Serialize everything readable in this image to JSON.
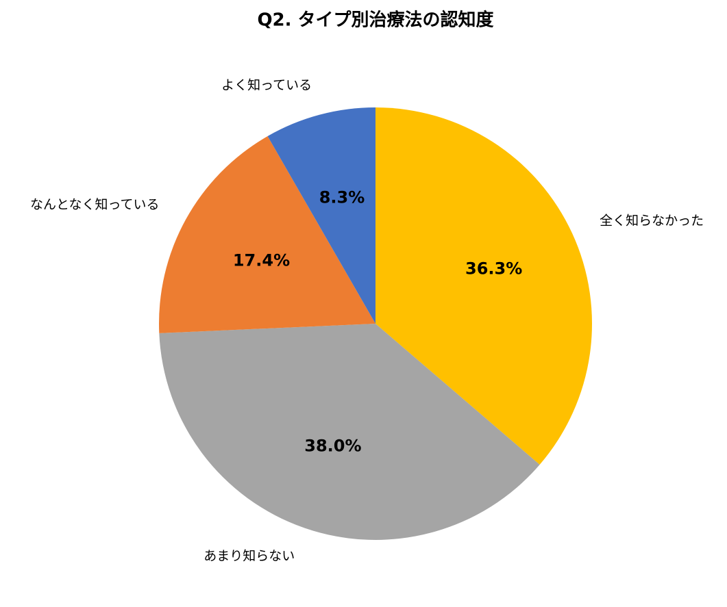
{
  "chart_data": {
    "type": "pie",
    "title": "Q2. タイプ別治療法の認知度",
    "categories": [
      "全く知らなかった",
      "あまり知らない",
      "なんとなく知っている",
      "よく知っている"
    ],
    "values": [
      36.3,
      38.0,
      17.4,
      8.3
    ],
    "value_labels": [
      "36.3%",
      "38.0%",
      "17.4%",
      "8.3%"
    ],
    "colors": [
      "#ffc000",
      "#a5a5a5",
      "#ed7d31",
      "#4472c4"
    ]
  }
}
